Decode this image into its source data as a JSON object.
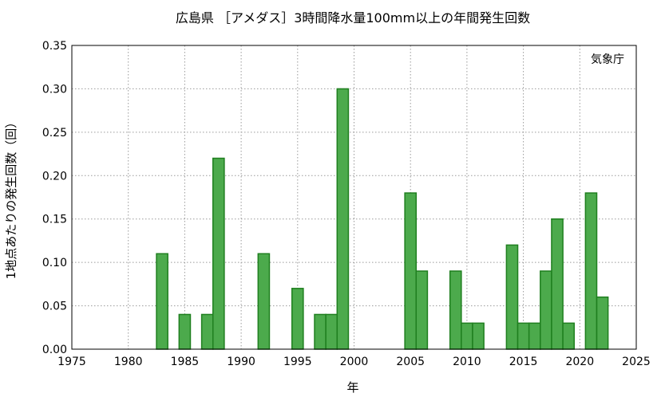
{
  "chart_data": {
    "type": "bar",
    "title": "広島県 ［アメダス］3時間降水量100mm以上の年間発生回数",
    "xlabel": "年",
    "ylabel": "1地点あたりの発生回数（回）",
    "annotation": "気象庁",
    "xlim": [
      1975,
      2025
    ],
    "ylim": [
      0,
      0.35
    ],
    "x_ticks": [
      1975,
      1980,
      1985,
      1990,
      1995,
      2000,
      2005,
      2010,
      2015,
      2020,
      2025
    ],
    "y_ticks": [
      "0.00",
      "0.05",
      "0.10",
      "0.15",
      "0.20",
      "0.25",
      "0.30",
      "0.35"
    ],
    "grid": true,
    "bar_fill": "#4caa4c",
    "bar_stroke": "#1f7f1f",
    "x": [
      1983,
      1985,
      1987,
      1988,
      1992,
      1995,
      1997,
      1998,
      1999,
      2005,
      2006,
      2009,
      2010,
      2011,
      2014,
      2015,
      2016,
      2017,
      2018,
      2019,
      2021,
      2022
    ],
    "values": [
      0.11,
      0.04,
      0.04,
      0.22,
      0.11,
      0.07,
      0.04,
      0.04,
      0.3,
      0.18,
      0.09,
      0.09,
      0.03,
      0.03,
      0.12,
      0.03,
      0.03,
      0.09,
      0.15,
      0.03,
      0.18,
      0.06
    ]
  }
}
